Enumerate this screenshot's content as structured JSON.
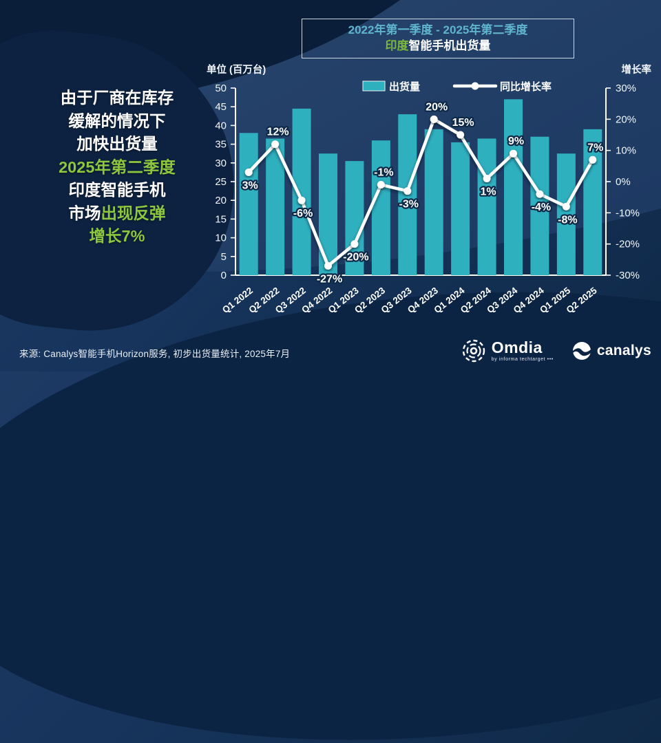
{
  "title_box": {
    "line1": "2022年第一季度 - 2025年第二季度",
    "line2_highlight": "印度",
    "line2_rest": "智能手机出货量"
  },
  "left_panel": {
    "lines": [
      {
        "segments": [
          {
            "text": "由于厂商在库存",
            "highlight": false
          }
        ]
      },
      {
        "segments": [
          {
            "text": "缓解的情况下",
            "highlight": false
          }
        ]
      },
      {
        "segments": [
          {
            "text": "加快出货量",
            "highlight": false
          }
        ]
      },
      {
        "segments": [
          {
            "text": "2025年第二季度",
            "highlight": true
          }
        ]
      },
      {
        "segments": [
          {
            "text": "印度智能手机",
            "highlight": false
          }
        ]
      },
      {
        "segments": [
          {
            "text": "市场",
            "highlight": false
          },
          {
            "text": "出现反弹",
            "highlight": true
          }
        ]
      },
      {
        "segments": [
          {
            "text": "增长7%",
            "highlight": true
          }
        ]
      }
    ]
  },
  "chart_data": {
    "type": "bar",
    "title": "2022年第一季度 - 2025年第二季度 印度智能手机出货量",
    "left_axis_title": "单位 (百万台)",
    "right_axis_title": "增长率",
    "categories": [
      "Q1 2022",
      "Q2 2022",
      "Q3 2022",
      "Q4 2022",
      "Q1 2023",
      "Q2 2023",
      "Q3 2023",
      "Q4 2023",
      "Q1 2024",
      "Q2 2024",
      "Q3 2024",
      "Q4 2024",
      "Q1 2025",
      "Q2 2025"
    ],
    "series": [
      {
        "name": "出货量",
        "type": "bar",
        "axis": "left",
        "color": "#2fb0bf",
        "values": [
          38,
          36.5,
          44.5,
          32.5,
          30.5,
          36,
          43,
          39,
          35.5,
          36.5,
          47,
          37,
          32.5,
          39
        ]
      },
      {
        "name": "同比增长率",
        "type": "line",
        "axis": "right",
        "color": "#ffffff",
        "values": [
          3,
          12,
          -6,
          -27,
          -20,
          -1,
          -3,
          20,
          15,
          1,
          9,
          -4,
          -8,
          7
        ],
        "point_labels": [
          "3%",
          "12%",
          "-6%",
          "-27%",
          "-20%",
          "-1%",
          "-3%",
          "20%",
          "15%",
          "1%",
          "9%",
          "-4%",
          "-8%",
          "7%"
        ],
        "label_positions": [
          "below",
          "above",
          "below",
          "below",
          "below",
          "above",
          "below",
          "above",
          "above",
          "below",
          "above",
          "below",
          "below",
          "above"
        ]
      }
    ],
    "left_axis": {
      "min": 0,
      "max": 50,
      "step": 5
    },
    "right_axis": {
      "min": -30,
      "max": 30,
      "step": 10,
      "suffix": "%"
    },
    "grid": false,
    "legend_position": "top"
  },
  "footer": {
    "source": "来源: Canalys智能手机Horizon服务, 初步出货量统计, 2025年7月",
    "omdia_name": "Omdia",
    "omdia_sub": "by informa techtarget •••",
    "canalys_name": "canalys"
  },
  "colors": {
    "bar": "#2fb0bf",
    "line": "#ffffff",
    "highlight_green": "#8dc63f",
    "title_teal": "#5fb4ce",
    "background": "#16345c",
    "label_outline": "#0e2947"
  }
}
